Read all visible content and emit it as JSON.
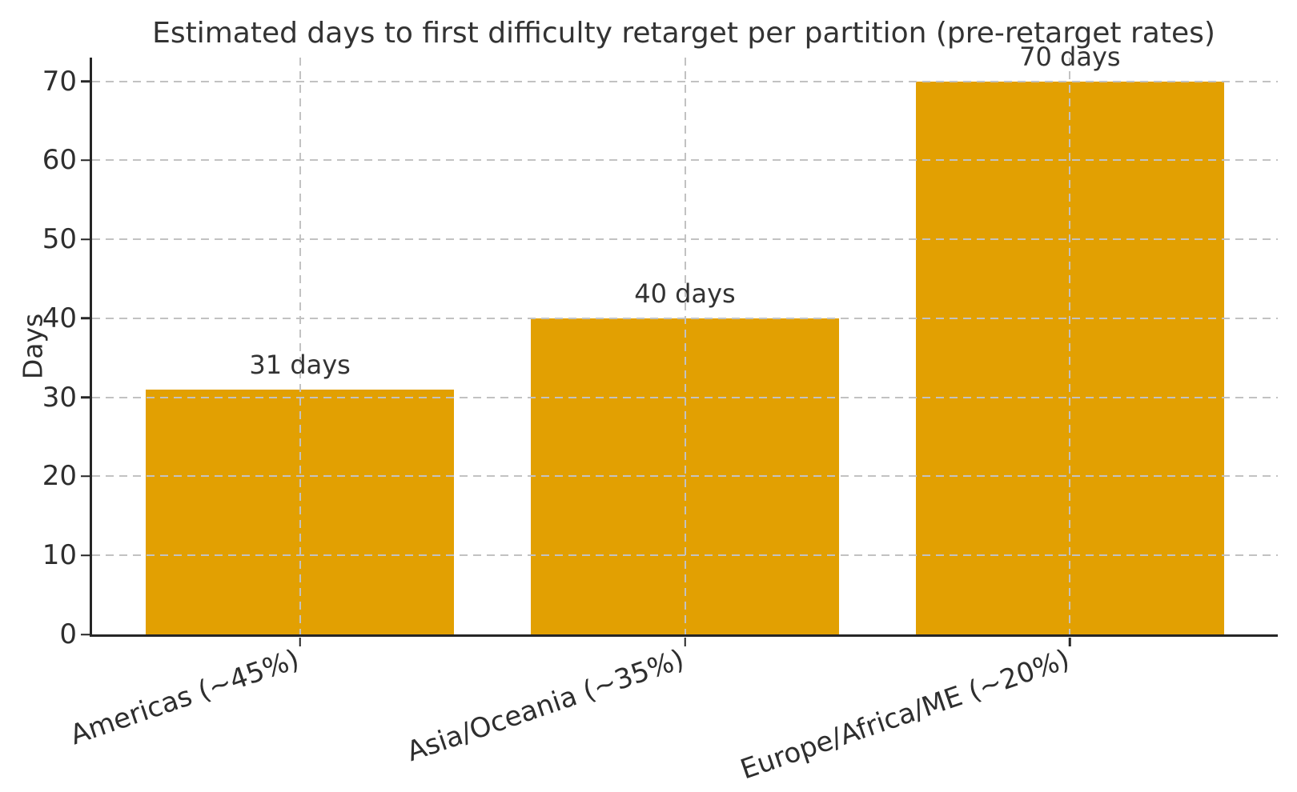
{
  "chart_data": {
    "type": "bar",
    "title": "Estimated days to first difficulty retarget per partition (pre-retarget rates)",
    "xlabel": "",
    "ylabel": "Days",
    "categories": [
      "Americas (~45%)",
      "Asia/Oceania (~35%)",
      "Europe/Africa/ME (~20%)"
    ],
    "values": [
      31,
      40,
      70
    ],
    "bar_labels": [
      "31 days",
      "40 days",
      "70 days"
    ],
    "yticks": [
      0,
      10,
      20,
      30,
      40,
      50,
      60,
      70
    ],
    "ylim": [
      0,
      73
    ],
    "grid": true,
    "grid_style": "dashed",
    "grid_above_bars": true,
    "legend_position": "none",
    "bar_color": "#E2A002",
    "grid_color": "#C2C2C2",
    "axis_color": "#262626",
    "text_color": "#2E2E2E",
    "background_color": "#FFFFFF"
  }
}
